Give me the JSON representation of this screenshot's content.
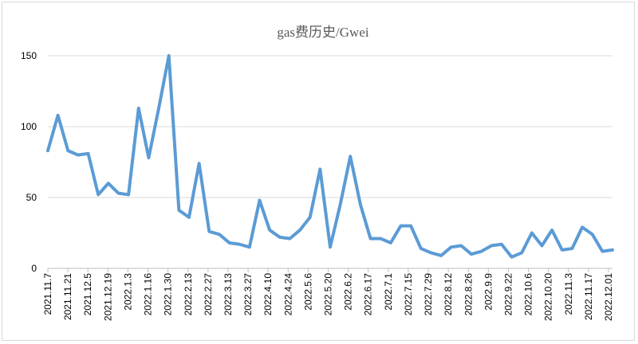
{
  "chart_data": {
    "type": "line",
    "title": "gas费历史/Gwei",
    "xlabel": "",
    "ylabel": "",
    "ylim": [
      0,
      150
    ],
    "yticks": [
      0,
      50,
      100,
      150
    ],
    "grid": true,
    "legend": "none",
    "color": "#5b9bd5",
    "x_tick_labels": [
      "2021.11.7",
      "2021.11.21",
      "2021.12.5",
      "2021.12.19",
      "2022.1.3",
      "2022.1.16",
      "2022.1.30",
      "2022.2.13",
      "2022.2.27",
      "2022.3.13",
      "2022.3.27",
      "2022.4.10",
      "2022.4.24",
      "2022.5.6",
      "2022.5.20",
      "2022.6.2",
      "2022.6.17",
      "2022.7.1",
      "2022.7.15",
      "2022.7.29",
      "2022.8.12",
      "2022.8.26",
      "2022.9.9",
      "2022.9.22",
      "2022.10.6",
      "2022.10.20",
      "2022.11.3",
      "2022.11.17",
      "2022.12.01"
    ],
    "values": [
      83,
      108,
      83,
      80,
      81,
      52,
      60,
      53,
      52,
      113,
      78,
      113,
      150,
      41,
      36,
      74,
      26,
      24,
      18,
      17,
      15,
      48,
      27,
      22,
      21,
      27,
      36,
      70,
      15,
      45,
      79,
      45,
      21,
      21,
      18,
      30,
      30,
      14,
      11,
      9,
      15,
      16,
      10,
      12,
      16,
      17,
      8,
      11,
      25,
      16,
      27,
      13,
      14,
      29,
      24,
      12,
      13
    ]
  }
}
